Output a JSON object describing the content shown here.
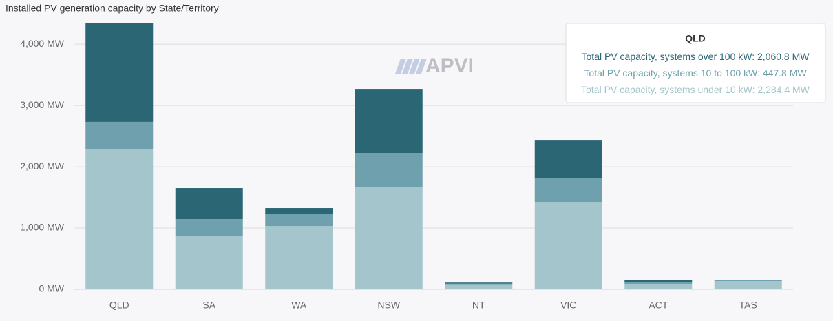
{
  "chart_data": {
    "type": "stacked_bar",
    "title": "Installed PV generation capacity by State/Territory",
    "watermark": "APVI",
    "categories": [
      "QLD",
      "SA",
      "WA",
      "NSW",
      "NT",
      "VIC",
      "ACT",
      "TAS"
    ],
    "series": [
      {
        "name": "Total PV capacity, systems over 100 kW",
        "color": "#2a6674",
        "values": [
          2060.8,
          506,
          101,
          1045,
          15,
          618,
          33,
          5
        ]
      },
      {
        "name": "Total PV capacity, systems 10 to 100 kW",
        "color": "#6ea1ad",
        "values": [
          447.8,
          270,
          191,
          562,
          25,
          393,
          34,
          11
        ]
      },
      {
        "name": "Total PV capacity, systems under 10 kW",
        "color": "#a4c5cb",
        "values": [
          2284.4,
          876,
          1034,
          1663,
          70,
          1427,
          90,
          135
        ]
      }
    ],
    "ylim": [
      0,
      4350
    ],
    "yticks": [
      {
        "value": 0,
        "label": "0 MW"
      },
      {
        "value": 1000,
        "label": "1,000 MW"
      },
      {
        "value": 2000,
        "label": "2,000 MW"
      },
      {
        "value": 3000,
        "label": "3,000 MW"
      },
      {
        "value": 4000,
        "label": "4,000 MW"
      }
    ],
    "grid": true,
    "tooltip": {
      "title": "QLD",
      "separator": ": ",
      "values": [
        "2,060.8 MW",
        "447.8 MW",
        "2,284.4 MW"
      ]
    }
  }
}
